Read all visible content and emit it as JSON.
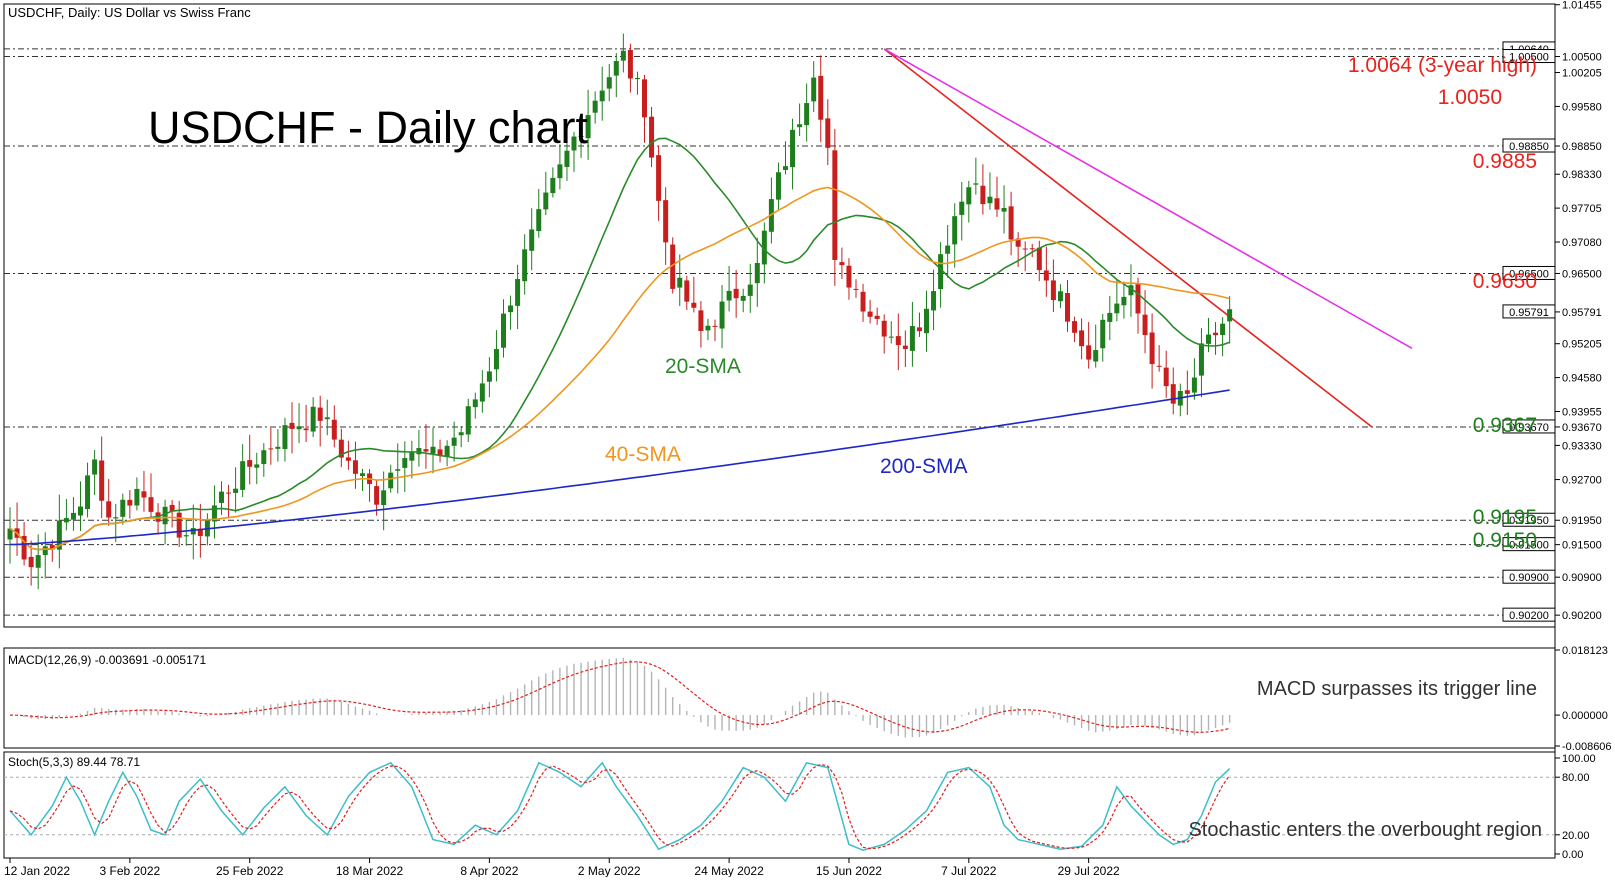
{
  "window": {
    "header": "USDCHF, Daily:  US Dollar vs Swiss Franc",
    "chart_title": "USDCHF - Daily chart"
  },
  "annotations": {
    "sma20": "20-SMA",
    "sma40": "40-SMA",
    "sma200": "200-SMA",
    "lvl_10064": "1.0064 (3-year high)",
    "lvl_10050": "1.0050",
    "lvl_9885": "0.9885",
    "lvl_9650": "0.9650",
    "lvl_9367": "0.9367",
    "lvl_9195": "0.9195",
    "lvl_9150": "0.9150",
    "macd_note": "MACD surpasses its trigger line",
    "stoch_note": "Stochastic enters the overbought region"
  },
  "indicators": {
    "macd_header": "MACD(12,26,9) -0.003691 -0.005171",
    "stoch_header": "Stoch(5,3,3) 89.44 78.71"
  },
  "colors": {
    "bull": "#1e7e1e",
    "bear": "#c81e1e",
    "sma20": "#2a8a2a",
    "sma40": "#f0961e",
    "sma200": "#1e28c8",
    "trend_red": "#e8231e",
    "trend_magenta": "#e632e6",
    "macd_signal": "#e0201e",
    "macd_hist": "#b4b4b4",
    "stoch_main": "#3cbec8",
    "stoch_signal": "#e0201e",
    "level_red": "#e8231e",
    "level_green": "#1e7e1e"
  },
  "chart_data": [
    {
      "type": "candlestick",
      "title": "USDCHF - Daily chart",
      "ylim": [
        0.9,
        1.0145
      ],
      "y_ticks": [
        "1.01455",
        "1.00500",
        "1.00205",
        "0.99580",
        "0.98850",
        "0.98330",
        "0.97705",
        "0.97080",
        "0.96500",
        "0.95791",
        "0.95205",
        "0.94580",
        "0.93955",
        "0.93670",
        "0.93330",
        "0.92700",
        "0.91950",
        "0.91500",
        "0.90900",
        "0.90200"
      ],
      "x_ticks": [
        "12 Jan 2022",
        "3 Feb 2022",
        "25 Feb 2022",
        "18 Mar 2022",
        "8 Apr 2022",
        "2 May 2022",
        "24 May 2022",
        "15 Jun 2022",
        "7 Jul 2022",
        "29 Jul 2022"
      ],
      "levels": [
        {
          "value": 1.0064,
          "label": "1.0064 (3-year high)",
          "tag": "1.00640"
        },
        {
          "value": 1.005,
          "label": "1.0050",
          "tag": "1.00500"
        },
        {
          "value": 0.9885,
          "label": "0.9885",
          "tag": "0.98850"
        },
        {
          "value": 0.965,
          "label": "0.9650",
          "tag": "0.96500"
        },
        {
          "value": 0.9367,
          "label": "0.9367",
          "tag": "0.93670"
        },
        {
          "value": 0.9195,
          "label": "0.9195",
          "tag": "0.91950"
        },
        {
          "value": 0.915,
          "label": "0.9150",
          "tag": "0.91500"
        },
        {
          "value": 0.909,
          "label": "",
          "tag": "0.90900"
        },
        {
          "value": 0.902,
          "label": "",
          "tag": "0.90200"
        }
      ],
      "current_price": "0.95791",
      "close_anchors": [
        [
          0,
          0.918
        ],
        [
          3,
          0.912
        ],
        [
          6,
          0.916
        ],
        [
          10,
          0.923
        ],
        [
          12,
          0.93
        ],
        [
          14,
          0.92
        ],
        [
          18,
          0.925
        ],
        [
          22,
          0.92
        ],
        [
          26,
          0.916
        ],
        [
          30,
          0.924
        ],
        [
          35,
          0.931
        ],
        [
          40,
          0.937
        ],
        [
          44,
          0.939
        ],
        [
          48,
          0.93
        ],
        [
          52,
          0.924
        ],
        [
          56,
          0.933
        ],
        [
          60,
          0.931
        ],
        [
          64,
          0.936
        ],
        [
          68,
          0.948
        ],
        [
          72,
          0.965
        ],
        [
          76,
          0.978
        ],
        [
          80,
          0.99
        ],
        [
          84,
          1.0
        ],
        [
          87,
          1.005
        ],
        [
          90,
          0.996
        ],
        [
          92,
          0.978
        ],
        [
          94,
          0.964
        ],
        [
          96,
          0.96
        ],
        [
          98,
          0.954
        ],
        [
          102,
          0.96
        ],
        [
          106,
          0.966
        ],
        [
          108,
          0.978
        ],
        [
          110,
          0.986
        ],
        [
          112,
          0.994
        ],
        [
          114,
          1.003
        ],
        [
          116,
          0.988
        ],
        [
          117,
          0.966
        ],
        [
          119,
          0.964
        ],
        [
          122,
          0.958
        ],
        [
          125,
          0.954
        ],
        [
          127,
          0.952
        ],
        [
          129,
          0.956
        ],
        [
          131,
          0.964
        ],
        [
          133,
          0.972
        ],
        [
          135,
          0.98
        ],
        [
          137,
          0.982
        ],
        [
          139,
          0.978
        ],
        [
          141,
          0.976
        ],
        [
          143,
          0.968
        ],
        [
          145,
          0.969
        ],
        [
          148,
          0.962
        ],
        [
          151,
          0.956
        ],
        [
          153,
          0.95
        ],
        [
          155,
          0.956
        ],
        [
          157,
          0.96
        ],
        [
          159,
          0.961
        ],
        [
          161,
          0.954
        ],
        [
          163,
          0.946
        ],
        [
          165,
          0.941
        ],
        [
          167,
          0.942
        ],
        [
          169,
          0.95
        ],
        [
          171,
          0.954
        ],
        [
          173,
          0.9575
        ]
      ],
      "candle_count": 174,
      "sma_periods": [
        20,
        40,
        200
      ]
    },
    {
      "type": "bar",
      "name": "MACD(12,26,9)",
      "values_summary": {
        "macd": -0.003691,
        "signal": -0.005171
      },
      "ylim": [
        -0.008606,
        0.018123
      ],
      "y_ticks": [
        "0.018123",
        "0.000000",
        "-0.008606"
      ]
    },
    {
      "type": "line",
      "name": "Stoch(5,3,3)",
      "values_summary": {
        "main": 89.44,
        "signal": 78.71
      },
      "ylim": [
        0,
        100
      ],
      "y_ticks": [
        "100.00",
        "80.00",
        "20.00",
        "0.00"
      ],
      "main_anchors": [
        [
          0,
          45
        ],
        [
          3,
          20
        ],
        [
          6,
          50
        ],
        [
          8,
          80
        ],
        [
          10,
          55
        ],
        [
          12,
          20
        ],
        [
          14,
          55
        ],
        [
          16,
          85
        ],
        [
          18,
          60
        ],
        [
          20,
          25
        ],
        [
          22,
          20
        ],
        [
          24,
          55
        ],
        [
          27,
          78
        ],
        [
          30,
          45
        ],
        [
          33,
          20
        ],
        [
          36,
          48
        ],
        [
          39,
          70
        ],
        [
          42,
          40
        ],
        [
          45,
          20
        ],
        [
          48,
          60
        ],
        [
          51,
          85
        ],
        [
          54,
          95
        ],
        [
          57,
          70
        ],
        [
          60,
          15
        ],
        [
          63,
          10
        ],
        [
          66,
          30
        ],
        [
          69,
          20
        ],
        [
          72,
          45
        ],
        [
          75,
          95
        ],
        [
          78,
          85
        ],
        [
          81,
          70
        ],
        [
          84,
          95
        ],
        [
          86,
          70
        ],
        [
          89,
          40
        ],
        [
          92,
          5
        ],
        [
          95,
          15
        ],
        [
          98,
          30
        ],
        [
          101,
          55
        ],
        [
          104,
          90
        ],
        [
          107,
          80
        ],
        [
          110,
          55
        ],
        [
          113,
          95
        ],
        [
          116,
          90
        ],
        [
          119,
          10
        ],
        [
          121,
          4
        ],
        [
          124,
          10
        ],
        [
          127,
          25
        ],
        [
          130,
          45
        ],
        [
          133,
          85
        ],
        [
          136,
          90
        ],
        [
          139,
          70
        ],
        [
          141,
          30
        ],
        [
          143,
          15
        ],
        [
          146,
          10
        ],
        [
          149,
          5
        ],
        [
          152,
          8
        ],
        [
          155,
          30
        ],
        [
          157,
          70
        ],
        [
          159,
          50
        ],
        [
          161,
          35
        ],
        [
          163,
          20
        ],
        [
          165,
          10
        ],
        [
          167,
          15
        ],
        [
          169,
          40
        ],
        [
          171,
          75
        ],
        [
          173,
          89
        ]
      ]
    }
  ]
}
